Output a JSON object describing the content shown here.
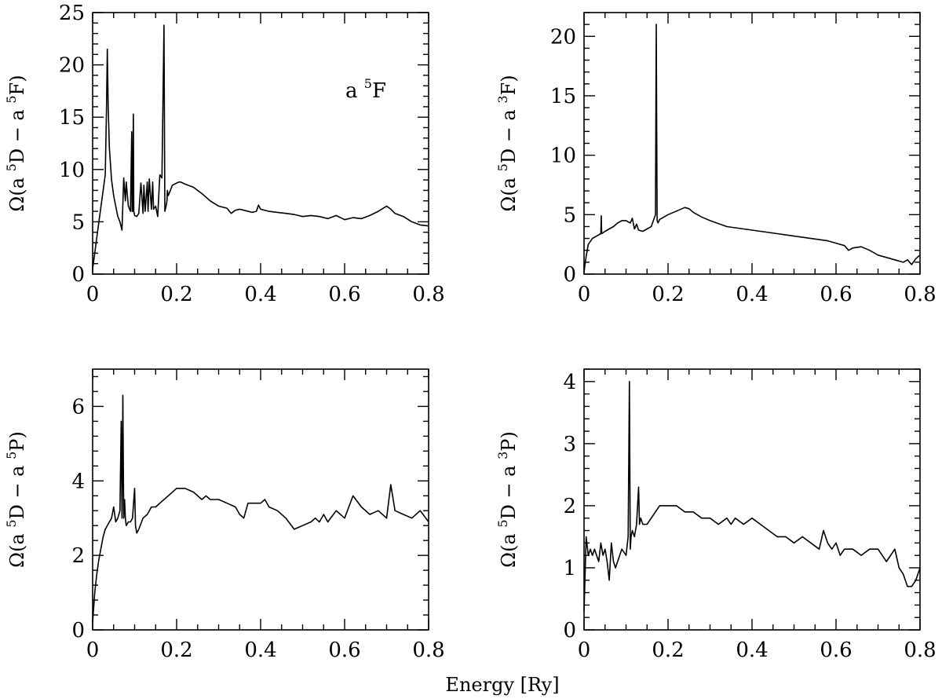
{
  "figure": {
    "xlabel": "Energy [Ry]"
  },
  "chart_data": [
    {
      "id": "p1",
      "type": "line",
      "ylabel": {
        "pre": "Ω(a ",
        "sup1": "5",
        "mid": "D − a ",
        "sup2": "5",
        "post": "F)"
      },
      "annotation": {
        "pre": "a ",
        "sup": "5",
        "post": "F"
      },
      "xlim": [
        0,
        0.8
      ],
      "ylim": [
        0,
        25
      ],
      "xticks": [
        0,
        0.2,
        0.4,
        0.6,
        0.8
      ],
      "xtick_labels": [
        "0",
        "0.2",
        "0.4",
        "0.6",
        "0.8"
      ],
      "yticks": [
        0,
        5,
        10,
        15,
        20,
        25
      ],
      "ytick_labels": [
        "0",
        "5",
        "10",
        "15",
        "20",
        "25"
      ],
      "x": [
        0,
        0.005,
        0.01,
        0.015,
        0.02,
        0.025,
        0.03,
        0.033,
        0.035,
        0.037,
        0.04,
        0.045,
        0.05,
        0.055,
        0.06,
        0.065,
        0.07,
        0.074,
        0.078,
        0.08,
        0.085,
        0.09,
        0.093,
        0.094,
        0.095,
        0.097,
        0.098,
        0.099,
        0.1,
        0.105,
        0.11,
        0.115,
        0.12,
        0.122,
        0.125,
        0.13,
        0.132,
        0.135,
        0.14,
        0.143,
        0.145,
        0.15,
        0.155,
        0.16,
        0.165,
        0.17,
        0.172,
        0.175,
        0.177,
        0.178,
        0.18,
        0.185,
        0.19,
        0.2,
        0.205,
        0.21,
        0.22,
        0.24,
        0.26,
        0.28,
        0.3,
        0.32,
        0.33,
        0.34,
        0.35,
        0.36,
        0.38,
        0.39,
        0.395,
        0.4,
        0.42,
        0.44,
        0.46,
        0.48,
        0.5,
        0.52,
        0.54,
        0.56,
        0.58,
        0.6,
        0.62,
        0.64,
        0.66,
        0.68,
        0.7,
        0.71,
        0.72,
        0.74,
        0.76,
        0.78,
        0.8
      ],
      "y": [
        0.5,
        2.0,
        3.5,
        5.0,
        6.5,
        8.0,
        9.5,
        16,
        21.5,
        16,
        12,
        9,
        7.5,
        6.5,
        5.5,
        5.0,
        4.2,
        9.2,
        7.0,
        8.8,
        6.5,
        6.0,
        13.6,
        6.0,
        6.0,
        15.3,
        6.0,
        5.8,
        5.6,
        5.5,
        5.8,
        8.7,
        5.8,
        8.5,
        6.0,
        8.8,
        6.0,
        9.1,
        6.2,
        8.8,
        6.2,
        6.5,
        5.5,
        9.5,
        9.2,
        23.8,
        6.0,
        6.5,
        7.0,
        8.0,
        7.5,
        8.0,
        8.5,
        8.7,
        8.8,
        8.8,
        8.6,
        8.3,
        7.7,
        7.0,
        6.5,
        6.3,
        5.8,
        6.1,
        6.2,
        6.1,
        5.9,
        6.0,
        6.6,
        6.2,
        6.0,
        5.9,
        5.8,
        5.7,
        5.5,
        5.6,
        5.5,
        5.3,
        5.6,
        5.2,
        5.4,
        5.3,
        5.6,
        6.0,
        6.5,
        6.2,
        5.8,
        5.5,
        5.0,
        4.7,
        4.6
      ]
    },
    {
      "id": "p2",
      "type": "line",
      "ylabel": {
        "pre": "Ω(a ",
        "sup1": "5",
        "mid": "D − a ",
        "sup2": "3",
        "post": "F)"
      },
      "xlim": [
        0,
        0.8
      ],
      "ylim": [
        0,
        22
      ],
      "xticks": [
        0,
        0.2,
        0.4,
        0.6,
        0.8
      ],
      "xtick_labels": [
        "0",
        "0.2",
        "0.4",
        "0.6",
        "0.8"
      ],
      "yticks": [
        0,
        5,
        10,
        15,
        20
      ],
      "ytick_labels": [
        "0",
        "5",
        "10",
        "15",
        "20"
      ],
      "x": [
        0,
        0.005,
        0.01,
        0.02,
        0.03,
        0.04,
        0.041,
        0.042,
        0.05,
        0.06,
        0.07,
        0.08,
        0.09,
        0.1,
        0.11,
        0.115,
        0.12,
        0.125,
        0.13,
        0.14,
        0.15,
        0.16,
        0.165,
        0.17,
        0.172,
        0.174,
        0.176,
        0.18,
        0.2,
        0.22,
        0.24,
        0.25,
        0.26,
        0.28,
        0.3,
        0.34,
        0.38,
        0.42,
        0.46,
        0.5,
        0.54,
        0.58,
        0.6,
        0.62,
        0.63,
        0.64,
        0.66,
        0.68,
        0.7,
        0.72,
        0.74,
        0.76,
        0.77,
        0.78,
        0.79,
        0.8
      ],
      "y": [
        0.2,
        1.5,
        2.5,
        3.0,
        3.2,
        3.4,
        4.9,
        3.4,
        3.6,
        3.8,
        4.0,
        4.3,
        4.5,
        4.5,
        4.3,
        4.7,
        3.8,
        4.2,
        3.7,
        3.6,
        3.8,
        4.0,
        4.5,
        5.0,
        21.0,
        4.5,
        4.3,
        4.6,
        5.0,
        5.3,
        5.6,
        5.5,
        5.2,
        4.8,
        4.5,
        4.0,
        3.8,
        3.6,
        3.4,
        3.2,
        3.0,
        2.8,
        2.6,
        2.4,
        2.0,
        2.2,
        2.3,
        2.0,
        1.6,
        1.4,
        1.2,
        1.0,
        1.2,
        0.8,
        1.3,
        1.6
      ]
    },
    {
      "id": "p3",
      "type": "line",
      "ylabel": {
        "pre": "Ω(a ",
        "sup1": "5",
        "mid": "D − a ",
        "sup2": "5",
        "post": "P)"
      },
      "xlim": [
        0,
        0.8
      ],
      "ylim": [
        0,
        7
      ],
      "xticks": [
        0,
        0.2,
        0.4,
        0.6,
        0.8
      ],
      "xtick_labels": [
        "0",
        "0.2",
        "0.4",
        "0.6",
        "0.8"
      ],
      "yticks": [
        0,
        2,
        4,
        6
      ],
      "ytick_labels": [
        "0",
        "2",
        "4",
        "6"
      ],
      "x": [
        0,
        0.005,
        0.01,
        0.015,
        0.02,
        0.025,
        0.03,
        0.035,
        0.04,
        0.045,
        0.05,
        0.055,
        0.06,
        0.065,
        0.068,
        0.07,
        0.072,
        0.074,
        0.076,
        0.078,
        0.08,
        0.085,
        0.09,
        0.095,
        0.1,
        0.102,
        0.105,
        0.11,
        0.12,
        0.13,
        0.14,
        0.15,
        0.16,
        0.18,
        0.2,
        0.22,
        0.24,
        0.26,
        0.27,
        0.28,
        0.3,
        0.32,
        0.34,
        0.35,
        0.36,
        0.37,
        0.38,
        0.39,
        0.4,
        0.41,
        0.42,
        0.44,
        0.46,
        0.48,
        0.5,
        0.52,
        0.53,
        0.54,
        0.55,
        0.56,
        0.58,
        0.6,
        0.62,
        0.64,
        0.66,
        0.68,
        0.7,
        0.71,
        0.72,
        0.74,
        0.76,
        0.78,
        0.8
      ],
      "y": [
        0.2,
        1.0,
        1.5,
        1.9,
        2.2,
        2.5,
        2.7,
        2.8,
        2.9,
        3.0,
        3.3,
        2.9,
        3.0,
        3.2,
        5.6,
        3.0,
        6.3,
        3.0,
        3.5,
        3.0,
        2.8,
        2.9,
        2.9,
        3.0,
        3.8,
        2.8,
        2.6,
        2.7,
        3.0,
        3.1,
        3.3,
        3.3,
        3.4,
        3.6,
        3.8,
        3.8,
        3.7,
        3.5,
        3.6,
        3.5,
        3.5,
        3.4,
        3.3,
        3.1,
        3.0,
        3.4,
        3.4,
        3.4,
        3.4,
        3.5,
        3.3,
        3.2,
        3.0,
        2.7,
        2.8,
        2.9,
        3.0,
        2.9,
        3.1,
        2.9,
        3.2,
        3.0,
        3.6,
        3.3,
        3.1,
        3.2,
        3.0,
        3.9,
        3.2,
        3.1,
        3.0,
        3.2,
        2.9
      ]
    },
    {
      "id": "p4",
      "type": "line",
      "ylabel": {
        "pre": "Ω(a ",
        "sup1": "5",
        "mid": "D − a ",
        "sup2": "3",
        "post": "P)"
      },
      "xlim": [
        0,
        0.8
      ],
      "ylim": [
        0,
        4.2
      ],
      "xticks": [
        0,
        0.2,
        0.4,
        0.6,
        0.8
      ],
      "xtick_labels": [
        "0",
        "0.2",
        "0.4",
        "0.6",
        "0.8"
      ],
      "yticks": [
        0,
        1,
        2,
        3,
        4
      ],
      "ytick_labels": [
        "0",
        "1",
        "2",
        "3",
        "4"
      ],
      "x": [
        0,
        0.005,
        0.01,
        0.015,
        0.02,
        0.025,
        0.03,
        0.035,
        0.04,
        0.045,
        0.05,
        0.055,
        0.06,
        0.065,
        0.07,
        0.075,
        0.08,
        0.09,
        0.1,
        0.105,
        0.108,
        0.11,
        0.112,
        0.115,
        0.12,
        0.125,
        0.13,
        0.132,
        0.135,
        0.14,
        0.15,
        0.16,
        0.18,
        0.2,
        0.22,
        0.24,
        0.26,
        0.28,
        0.3,
        0.32,
        0.34,
        0.35,
        0.36,
        0.38,
        0.4,
        0.42,
        0.44,
        0.46,
        0.48,
        0.5,
        0.52,
        0.54,
        0.56,
        0.57,
        0.58,
        0.59,
        0.6,
        0.61,
        0.62,
        0.64,
        0.66,
        0.68,
        0.7,
        0.72,
        0.74,
        0.75,
        0.76,
        0.77,
        0.78,
        0.79,
        0.8
      ],
      "y": [
        0.3,
        1.5,
        1.2,
        1.3,
        1.2,
        1.3,
        1.2,
        1.1,
        1.4,
        1.2,
        1.3,
        1.1,
        0.8,
        1.4,
        1.1,
        1.0,
        1.1,
        1.3,
        1.2,
        1.5,
        4.0,
        1.3,
        1.5,
        1.6,
        1.5,
        1.7,
        2.3,
        1.7,
        1.8,
        1.7,
        1.7,
        1.8,
        2.0,
        2.0,
        2.0,
        1.9,
        1.9,
        1.8,
        1.8,
        1.7,
        1.8,
        1.7,
        1.8,
        1.7,
        1.8,
        1.7,
        1.6,
        1.5,
        1.5,
        1.4,
        1.5,
        1.4,
        1.3,
        1.6,
        1.4,
        1.3,
        1.4,
        1.2,
        1.3,
        1.3,
        1.2,
        1.3,
        1.3,
        1.1,
        1.3,
        1.0,
        0.9,
        0.7,
        0.7,
        0.8,
        1.0
      ]
    }
  ]
}
